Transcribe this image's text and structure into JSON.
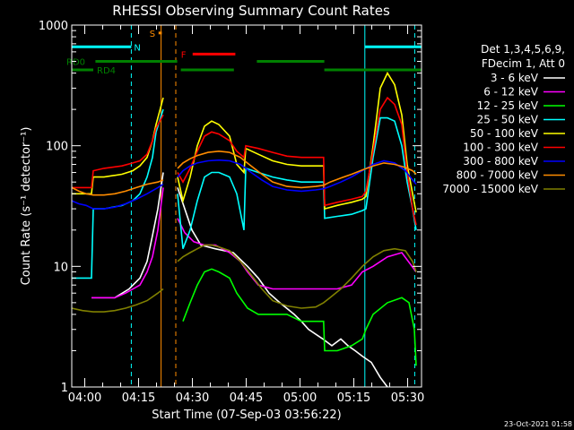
{
  "chart_data": {
    "type": "line",
    "title": "RHESSI Observing Summary Count Rates",
    "xlabel": "Start Time (07-Sep-03 03:56:22)",
    "ylabel": "Count Rate (s⁻¹ detector⁻¹)",
    "ylog": true,
    "ylim": [
      1,
      1000
    ],
    "xlim_minutes": [
      0,
      97.5
    ],
    "x_ticks": [
      {
        "m": 3.63,
        "label": "04:00"
      },
      {
        "m": 18.63,
        "label": "04:15"
      },
      {
        "m": 33.63,
        "label": "04:30"
      },
      {
        "m": 48.63,
        "label": "04:45"
      },
      {
        "m": 63.63,
        "label": "05:00"
      },
      {
        "m": 78.63,
        "label": "05:15"
      },
      {
        "m": 93.63,
        "label": "05:30"
      }
    ],
    "y_ticks": [
      {
        "v": 1,
        "label": "1"
      },
      {
        "v": 10,
        "label": "10"
      },
      {
        "v": 100,
        "label": "100"
      },
      {
        "v": 1000,
        "label": "1000"
      }
    ],
    "legend_header": [
      "Det 1,3,4,5,6,9,",
      "FDecim 1, Att 0"
    ],
    "legend_position": "right",
    "footer_date": "23-Oct-2021 01:58",
    "flags": [
      {
        "label": "N",
        "color": "#00ffff",
        "segments": [
          [
            0,
            16.6
          ],
          [
            81.7,
            97.5
          ]
        ],
        "yval": 660
      },
      {
        "label": "S",
        "color": "#ff8c00",
        "segments": [
          [
            24.2,
            25.1
          ]
        ],
        "yval": 860
      },
      {
        "label": "F",
        "color": "#ff0000",
        "segments": [
          [
            33.7,
            45.6
          ]
        ],
        "yval": 575
      },
      {
        "label": "RD0",
        "color": "#008000",
        "segments": [
          [
            6.6,
            29.4
          ],
          [
            51.6,
            70.4
          ]
        ],
        "yval": 500
      },
      {
        "label": "RD4",
        "color": "#008000",
        "segments": [
          [
            0,
            6.0
          ],
          [
            30.4,
            45.2
          ],
          [
            70.4,
            97.5
          ]
        ],
        "yval": 425
      }
    ],
    "vlines": [
      {
        "m": 16.6,
        "color": "#00ffff",
        "style": "dashed"
      },
      {
        "m": 24.9,
        "color": "#ff8c00",
        "style": "solid"
      },
      {
        "m": 29.0,
        "color": "#ff8c00",
        "style": "dashed"
      },
      {
        "m": 81.7,
        "color": "#00ffff",
        "style": "solid"
      },
      {
        "m": 95.6,
        "color": "#00ffff",
        "style": "dashed"
      }
    ],
    "series": [
      {
        "name": "3 - 6 keV",
        "color": "#ffffff",
        "x": [
          0,
          5.5,
          12,
          16,
          19,
          21,
          22.5,
          24,
          25.5,
          28.5,
          29.5,
          31.5,
          33.5,
          36,
          40,
          45,
          49,
          52,
          55,
          58,
          62,
          64,
          66,
          70,
          72.5,
          75,
          77,
          79,
          81,
          83.5,
          86,
          88,
          92,
          96
        ],
        "y": [
          null,
          5.5,
          5.5,
          6.5,
          8,
          11,
          18,
          30,
          60,
          null,
          45,
          30,
          20,
          15,
          14,
          13,
          10,
          8,
          6,
          5,
          4,
          3.5,
          3,
          2.5,
          2.2,
          2.5,
          2.2,
          2.0,
          1.8,
          1.6,
          1.2,
          1.0,
          null,
          null
        ]
      },
      {
        "name": "6 - 12 keV",
        "color": "#ff00ff",
        "x": [
          0,
          5.5,
          12,
          15,
          19,
          21,
          22.5,
          24,
          25.5,
          28.5,
          29.5,
          31.5,
          34,
          37,
          40,
          44,
          47,
          49,
          52,
          56,
          60,
          64,
          67,
          70,
          74,
          78,
          81,
          84,
          88,
          92,
          96
        ],
        "y": [
          null,
          5.5,
          5.5,
          6,
          7,
          9,
          12,
          20,
          45,
          null,
          25,
          19,
          16,
          15,
          15,
          13,
          11,
          9,
          7,
          6.5,
          6.5,
          6.5,
          6.5,
          6.5,
          6.5,
          7,
          9,
          10,
          12,
          13,
          9
        ]
      },
      {
        "name": "12 - 25 keV",
        "color": "#00ff00",
        "x": [
          0,
          29.5,
          31,
          33,
          35,
          37,
          39,
          41,
          44,
          46,
          49,
          52,
          56,
          60,
          64,
          67,
          70.2,
          70.5,
          74,
          78,
          81,
          82,
          84,
          88,
          92,
          94,
          95.5,
          96
        ],
        "y": [
          null,
          null,
          3.5,
          5,
          7,
          9,
          9.5,
          9,
          8,
          6,
          4.5,
          4,
          4,
          4,
          3.5,
          3.5,
          3.5,
          2.0,
          2.0,
          2.2,
          2.5,
          3.0,
          4.0,
          5.0,
          5.5,
          5.0,
          3.0,
          1.5
        ]
      },
      {
        "name": "25 - 50 keV",
        "color": "#00ffff",
        "x": [
          0,
          5.5,
          6,
          9,
          14,
          17,
          19,
          21,
          22.5,
          23.5,
          25.5,
          28.5,
          29.5,
          31,
          33,
          35,
          37,
          39,
          41,
          44,
          46,
          48,
          48.5,
          52,
          56,
          60,
          64,
          67,
          70.2,
          70.5,
          74,
          78,
          81,
          82,
          84,
          86,
          88,
          90,
          92,
          93.5,
          95,
          96
        ],
        "y": [
          8,
          8,
          30,
          30,
          32,
          35,
          40,
          55,
          80,
          130,
          200,
          null,
          40,
          14,
          20,
          35,
          55,
          60,
          60,
          55,
          40,
          20,
          65,
          60,
          55,
          52,
          50,
          50,
          50,
          25,
          26,
          27,
          29,
          30,
          80,
          170,
          170,
          160,
          100,
          50,
          30,
          20
        ]
      },
      {
        "name": "50 - 100 keV",
        "color": "#ffff00",
        "x": [
          0,
          5.5,
          6,
          9,
          14,
          17,
          19,
          21,
          22.5,
          23.5,
          25.5,
          28.5,
          29.5,
          31,
          33,
          35,
          37,
          39,
          41,
          44,
          46,
          48,
          48.5,
          52,
          56,
          60,
          64,
          67,
          70.2,
          70.5,
          74,
          78,
          81,
          82,
          84,
          86,
          88,
          90,
          92,
          93.5,
          95,
          96
        ],
        "y": [
          40,
          40,
          55,
          55,
          58,
          62,
          68,
          80,
          110,
          150,
          250,
          null,
          55,
          35,
          55,
          100,
          145,
          160,
          150,
          120,
          70,
          60,
          95,
          85,
          75,
          70,
          68,
          68,
          68,
          30,
          32,
          34,
          36,
          38,
          100,
          300,
          400,
          320,
          180,
          70,
          40,
          28
        ]
      },
      {
        "name": "100 - 300 keV",
        "color": "#ff0000",
        "x": [
          0,
          5.5,
          6,
          9,
          14,
          17,
          19,
          21,
          22.5,
          23.5,
          25.5,
          28.5,
          29.5,
          31,
          33,
          35,
          37,
          39,
          41,
          44,
          46,
          48,
          48.5,
          52,
          56,
          60,
          64,
          67,
          70.2,
          70.5,
          74,
          78,
          81,
          82,
          84,
          86,
          88,
          90,
          92,
          93.5,
          95,
          96
        ],
        "y": [
          45,
          45,
          62,
          65,
          68,
          72,
          75,
          85,
          110,
          140,
          180,
          null,
          60,
          50,
          65,
          90,
          120,
          130,
          125,
          110,
          90,
          80,
          100,
          95,
          88,
          82,
          80,
          80,
          80,
          32,
          34,
          36,
          38,
          42,
          90,
          200,
          250,
          220,
          150,
          60,
          30,
          22
        ]
      },
      {
        "name": "300 - 800 keV",
        "color": "#0000ff",
        "x": [
          0,
          2,
          4,
          6,
          9,
          12,
          15,
          18,
          21,
          24,
          25.5,
          28.5,
          29.5,
          31,
          33,
          35,
          38,
          41,
          44,
          47,
          50,
          53,
          56,
          60,
          64,
          68,
          70.2,
          72,
          75,
          78,
          81,
          84,
          87,
          90,
          93,
          95,
          96
        ],
        "y": [
          35,
          33,
          32,
          30,
          30,
          31,
          33,
          36,
          40,
          45,
          48,
          null,
          55,
          62,
          68,
          72,
          75,
          76,
          75,
          70,
          60,
          52,
          46,
          43,
          42,
          43,
          44,
          46,
          50,
          55,
          62,
          70,
          75,
          72,
          62,
          52,
          48
        ]
      },
      {
        "name": "800 - 7000 keV",
        "color": "#ff8c00",
        "x": [
          0,
          2,
          4,
          6,
          9,
          12,
          15,
          18,
          21,
          24,
          25.5,
          28.5,
          29.5,
          31,
          33,
          35,
          38,
          41,
          44,
          47,
          50,
          53,
          56,
          60,
          64,
          68,
          70.2,
          72,
          75,
          78,
          81,
          84,
          87,
          90,
          93,
          95,
          96
        ],
        "y": [
          45,
          42,
          40,
          39,
          39,
          40,
          42,
          45,
          48,
          50,
          52,
          null,
          65,
          72,
          78,
          83,
          88,
          90,
          88,
          80,
          68,
          58,
          50,
          46,
          45,
          46,
          47,
          50,
          54,
          58,
          63,
          68,
          72,
          70,
          66,
          62,
          58
        ]
      },
      {
        "name": "7000 - 15000 keV",
        "color": "#808000",
        "x": [
          0,
          3,
          6,
          9,
          12,
          15,
          18,
          21,
          24,
          25.5,
          28.5,
          29.5,
          31,
          33,
          35,
          37,
          39,
          41,
          44,
          47,
          50,
          53,
          56,
          60,
          64,
          68,
          70.2,
          72,
          75,
          78,
          81,
          84,
          87,
          90,
          93,
          95,
          96
        ],
        "y": [
          4.5,
          4.3,
          4.2,
          4.2,
          4.3,
          4.5,
          4.8,
          5.2,
          6,
          6.5,
          null,
          11,
          12,
          13,
          14,
          15,
          15,
          14.5,
          13.5,
          11,
          8.5,
          6.5,
          5.2,
          4.7,
          4.5,
          4.6,
          5.0,
          5.5,
          6.5,
          8,
          10,
          12,
          13.5,
          14,
          13.5,
          11,
          9
        ]
      }
    ]
  }
}
